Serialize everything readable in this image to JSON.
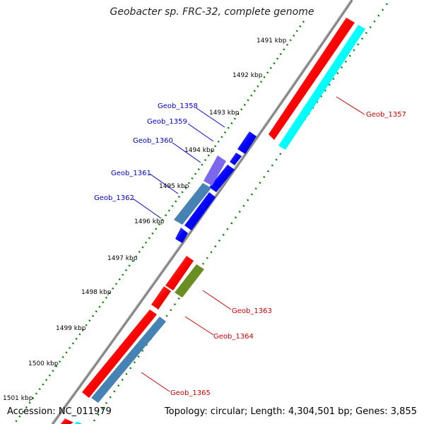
{
  "title": "Geobacter sp. FRC-32, complete genome",
  "footer": {
    "accession": "Accession: NC_011979",
    "topology": "Topology: circular; Length: 4,304,501 bp; Genes: 3,855"
  },
  "kbp_ticks": [
    "1491 kbp",
    "1492 kbp",
    "1493 kbp",
    "1494 kbp",
    "1495 kbp",
    "1496 kbp",
    "1497 kbp",
    "1498 kbp",
    "1499 kbp",
    "1500 kbp",
    "1501 kbp"
  ],
  "genes_blue": [
    "Geob_1358",
    "Geob_1359",
    "Geob_1360",
    "Geob_1361",
    "Geob_1362"
  ],
  "genes_red": [
    "Geob_1357",
    "Geob_1363",
    "Geob_1364",
    "Geob_1365"
  ],
  "colors": {
    "backbone": "#888888",
    "forward_cds": "#ff0000",
    "reverse_cds": "#0000ff",
    "cyan_feature": "#00ffff",
    "steelblue_feature": "#4682b4",
    "olive_feature": "#6b8e23",
    "purple_feature": "#7b68ee",
    "tick_green": "#008000",
    "label_blue": "#0000cc",
    "label_red": "#cc0000"
  }
}
